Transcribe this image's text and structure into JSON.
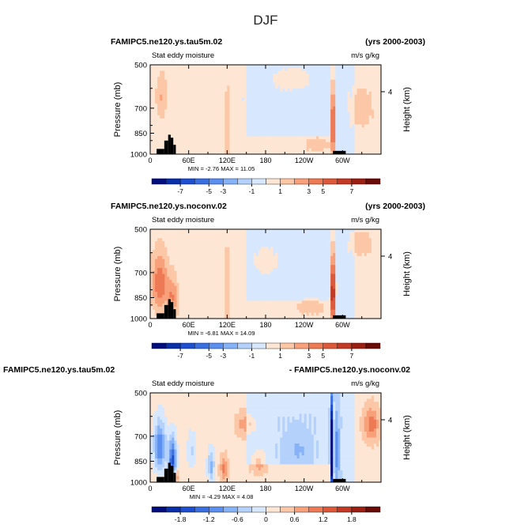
{
  "figure": {
    "title": "DJF"
  },
  "chart_data": [
    {
      "type": "heatmap",
      "left_title": "FAMIPC5.ne120.ys.tau5m.02",
      "right_title": "(yrs 2000-2003)",
      "subtitle": "Stat eddy moisture",
      "units": "m/s g/kg",
      "ylabel": "Pressure  (mb)",
      "ylabel_right": "Height  (km)",
      "yticks": [
        "500",
        "700",
        "850",
        "1000"
      ],
      "ytick_values": [
        500,
        700,
        850,
        1000
      ],
      "ylim": [
        1000,
        500
      ],
      "height_ticks": [
        "4"
      ],
      "height_tick_pressure": [
        616
      ],
      "xticks": [
        "0",
        "60E",
        "120E",
        "180",
        "120W",
        "60W"
      ],
      "xtick_lon": [
        0,
        60,
        120,
        180,
        240,
        300
      ],
      "xlim": [
        0,
        360
      ],
      "stats": "MIN =   -2.76   MAX =   11.05",
      "colorbar_ticks": [
        "-7",
        "-5",
        "-3",
        "-1",
        "1",
        "3",
        "5",
        "7"
      ],
      "colorbar_levels": [
        -8,
        -7,
        -6,
        -5,
        -4,
        -3,
        -2,
        -1,
        0,
        1,
        2,
        3,
        4,
        5,
        6,
        7,
        8
      ],
      "colors": [
        "#000d7c",
        "#0a2fa8",
        "#1d4fd0",
        "#3a6fe0",
        "#5b8ff0",
        "#86b2f7",
        "#b4d1fb",
        "#d7e8fe",
        "#fde6d4",
        "#fcc7a6",
        "#f7a07a",
        "#ee7a55",
        "#dc5838",
        "#c23a23",
        "#9b1f13",
        "#6b0a07"
      ],
      "background_level": [
        0.5,
        -0.3
      ],
      "blobs": [
        {
          "lon": 18,
          "p": 640,
          "value": 1.5,
          "wlon": 8,
          "wp": 110
        },
        {
          "lon": 150,
          "p": 650,
          "value": -0.6,
          "wlon": 10,
          "wp": 30
        },
        {
          "lon": 120,
          "p": 800,
          "value": 1.4,
          "wlon": 3,
          "wp": 250
        },
        {
          "lon": 285,
          "p": 800,
          "value": 6.0,
          "wlon": 3,
          "wp": 220
        },
        {
          "lon": 220,
          "p": 560,
          "value": 1.2,
          "wlon": 25,
          "wp": 40
        },
        {
          "lon": 260,
          "p": 930,
          "value": 1.0,
          "wlon": 20,
          "wp": 60
        },
        {
          "lon": 330,
          "p": 700,
          "value": 1.0,
          "wlon": 20,
          "wp": 120
        }
      ]
    },
    {
      "type": "heatmap",
      "left_title": "FAMIPC5.ne120.ys.noconv.02",
      "right_title": "(yrs 2000-2003)",
      "subtitle": "Stat eddy moisture",
      "units": "m/s g/kg",
      "ylabel": "Pressure  (mb)",
      "ylabel_right": "Height  (km)",
      "yticks": [
        "500",
        "700",
        "850",
        "1000"
      ],
      "ytick_values": [
        500,
        700,
        850,
        1000
      ],
      "ylim": [
        1000,
        500
      ],
      "height_ticks": [
        "4"
      ],
      "height_tick_pressure": [
        616
      ],
      "xticks": [
        "0",
        "60E",
        "120E",
        "180",
        "120W",
        "60W"
      ],
      "xtick_lon": [
        0,
        60,
        120,
        180,
        240,
        300
      ],
      "xlim": [
        0,
        360
      ],
      "stats": "MIN =   -6.81   MAX =   14.09",
      "colorbar_ticks": [
        "-7",
        "-5",
        "-3",
        "-1",
        "1",
        "3",
        "5",
        "7"
      ],
      "colorbar_levels": [
        -8,
        -7,
        -6,
        -5,
        -4,
        -3,
        -2,
        -1,
        0,
        1,
        2,
        3,
        4,
        5,
        6,
        7,
        8
      ],
      "colors": [
        "#000d7c",
        "#0a2fa8",
        "#1d4fd0",
        "#3a6fe0",
        "#5b8ff0",
        "#86b2f7",
        "#b4d1fb",
        "#d7e8fe",
        "#fde6d4",
        "#fcc7a6",
        "#f7a07a",
        "#ee7a55",
        "#dc5838",
        "#c23a23",
        "#9b1f13",
        "#6b0a07"
      ],
      "background_level": [
        0.5,
        -0.3
      ],
      "blobs": [
        {
          "lon": 15,
          "p": 760,
          "value": 3.5,
          "wlon": 12,
          "wp": 160
        },
        {
          "lon": 35,
          "p": 850,
          "value": 2.5,
          "wlon": 8,
          "wp": 130
        },
        {
          "lon": 120,
          "p": 800,
          "value": 2.0,
          "wlon": 3,
          "wp": 230
        },
        {
          "lon": 285,
          "p": 820,
          "value": 8.0,
          "wlon": 3,
          "wp": 230
        },
        {
          "lon": 180,
          "p": 640,
          "value": 1.0,
          "wlon": 15,
          "wp": 60
        },
        {
          "lon": 250,
          "p": 920,
          "value": 1.0,
          "wlon": 25,
          "wp": 60
        },
        {
          "lon": 330,
          "p": 560,
          "value": 1.0,
          "wlon": 20,
          "wp": 60
        }
      ]
    },
    {
      "type": "heatmap",
      "left_title": "FAMIPC5.ne120.ys.tau5m.02",
      "right_title": "- FAMIPC5.ne120.ys.noconv.02",
      "subtitle": "Stat eddy moisture",
      "units": "m/s g/kg",
      "ylabel": "Pressure  (mb)",
      "ylabel_right": "Height  (km)",
      "yticks": [
        "500",
        "700",
        "850",
        "1000"
      ],
      "ytick_values": [
        500,
        700,
        850,
        1000
      ],
      "ylim": [
        1000,
        500
      ],
      "height_ticks": [
        "4"
      ],
      "height_tick_pressure": [
        616
      ],
      "xticks": [
        "0",
        "60E",
        "120E",
        "180",
        "120W",
        "60W"
      ],
      "xtick_lon": [
        0,
        60,
        120,
        180,
        240,
        300
      ],
      "xlim": [
        0,
        360
      ],
      "stats": "MIN =   -4.29   MAX =   4.08",
      "colorbar_ticks": [
        "-1.8",
        "-1.2",
        "-0.6",
        "0",
        "0.6",
        "1.2",
        "1.8"
      ],
      "colorbar_levels": [
        -2.4,
        -2.1,
        -1.8,
        -1.5,
        -1.2,
        -0.9,
        -0.6,
        -0.3,
        0,
        0.3,
        0.6,
        0.9,
        1.2,
        1.5,
        1.8,
        2.1,
        2.4
      ],
      "colors": [
        "#000d7c",
        "#0a2fa8",
        "#1d4fd0",
        "#3a6fe0",
        "#5b8ff0",
        "#86b2f7",
        "#b4d1fb",
        "#d7e8fe",
        "#fde6d4",
        "#fcc7a6",
        "#f7a07a",
        "#ee7a55",
        "#dc5838",
        "#c23a23",
        "#9b1f13",
        "#6b0a07"
      ],
      "background_level": [
        0.2,
        -0.25
      ],
      "blobs": [
        {
          "lon": 15,
          "p": 760,
          "value": -1.4,
          "wlon": 10,
          "wp": 150
        },
        {
          "lon": 35,
          "p": 850,
          "value": -1.8,
          "wlon": 6,
          "wp": 150
        },
        {
          "lon": 40,
          "p": 960,
          "value": 1.0,
          "wlon": 4,
          "wp": 50
        },
        {
          "lon": 65,
          "p": 780,
          "value": -0.5,
          "wlon": 8,
          "wp": 120
        },
        {
          "lon": 95,
          "p": 880,
          "value": -0.9,
          "wlon": 6,
          "wp": 120
        },
        {
          "lon": 115,
          "p": 900,
          "value": 0.8,
          "wlon": 6,
          "wp": 80
        },
        {
          "lon": 150,
          "p": 640,
          "value": 0.6,
          "wlon": 15,
          "wp": 60
        },
        {
          "lon": 170,
          "p": 850,
          "value": 0.6,
          "wlon": 12,
          "wp": 80
        },
        {
          "lon": 230,
          "p": 780,
          "value": -0.4,
          "wlon": 20,
          "wp": 120
        },
        {
          "lon": 283,
          "p": 780,
          "value": -2.8,
          "wlon": 2,
          "wp": 260
        },
        {
          "lon": 292,
          "p": 780,
          "value": -1.0,
          "wlon": 3,
          "wp": 220
        },
        {
          "lon": 345,
          "p": 640,
          "value": 0.9,
          "wlon": 12,
          "wp": 80
        }
      ]
    }
  ]
}
